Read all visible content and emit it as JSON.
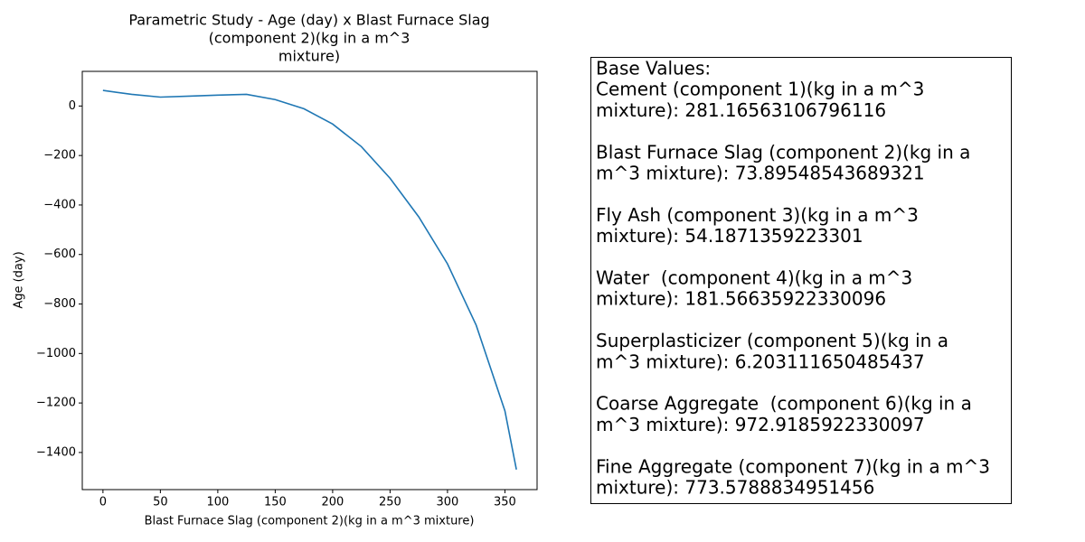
{
  "chart_data": {
    "type": "line",
    "title_lines": [
      "Parametric Study - Age (day) x Blast Furnace Slag",
      "(component 2)(kg in a m^3",
      "mixture)"
    ],
    "x_label": "Blast Furnace Slag (component 2)(kg in a m^3 mixture)",
    "y_label": "Age (day)",
    "x": [
      0,
      25,
      50,
      75,
      100,
      125,
      150,
      175,
      200,
      225,
      250,
      275,
      300,
      325,
      350,
      360
    ],
    "series": [
      {
        "color": "#1f77b4",
        "values": [
          63,
          47,
          36,
          40,
          44,
          47,
          26,
          -11,
          -73,
          -164,
          -292,
          -448,
          -638,
          -886,
          -1232,
          -1469
        ]
      }
    ],
    "xlim": [
      -18,
      378
    ],
    "ylim": [
      -1550,
      140
    ],
    "xticks": [
      0,
      50,
      100,
      150,
      200,
      250,
      300,
      350
    ],
    "yticks": [
      {
        "value": -1400,
        "label": "−1400"
      },
      {
        "value": -1200,
        "label": "−1200"
      },
      {
        "value": -1000,
        "label": "−1000"
      },
      {
        "value": -800,
        "label": "−800"
      },
      {
        "value": -600,
        "label": "−600"
      },
      {
        "value": -400,
        "label": "−400"
      },
      {
        "value": -200,
        "label": "−200"
      },
      0
    ]
  },
  "base_values": {
    "title": "Base Values:",
    "items": [
      [
        "Cement (component 1)(kg in a m^3",
        "mixture): 281.16563106796116"
      ],
      [
        "Blast Furnace Slag (component 2)(kg in a",
        "m^3 mixture): 73.89548543689321"
      ],
      [
        "Fly Ash (component 3)(kg in a m^3",
        "mixture): 54.1871359223301"
      ],
      [
        "Water  (component 4)(kg in a m^3",
        "mixture): 181.56635922330096"
      ],
      [
        "Superplasticizer (component 5)(kg in a",
        "m^3 mixture): 6.203111650485437"
      ],
      [
        "Coarse Aggregate  (component 6)(kg in a",
        "m^3 mixture): 972.9185922330097"
      ],
      [
        "Fine Aggregate (component 7)(kg in a m^3",
        "mixture): 773.5788834951456"
      ]
    ]
  }
}
